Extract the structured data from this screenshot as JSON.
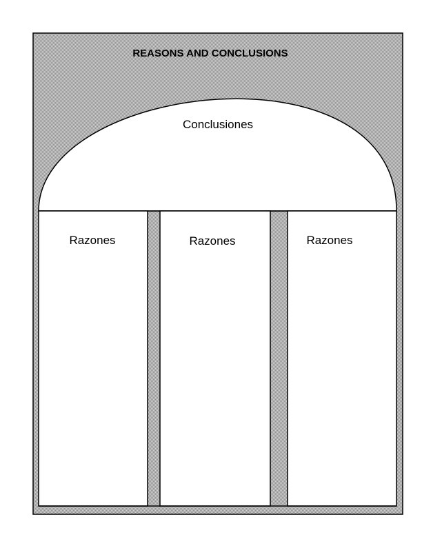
{
  "title": "REASONS AND CONCLUSIONS",
  "conclusion": {
    "label": "Conclusiones"
  },
  "reasons": [
    {
      "label": "Razones"
    },
    {
      "label": "Razones"
    },
    {
      "label": "Razones"
    }
  ],
  "colors": {
    "stipple_dark": "#8c8c8c",
    "stipple_light": "#d6d6d6",
    "line": "#000000",
    "panel": "#ffffff"
  }
}
